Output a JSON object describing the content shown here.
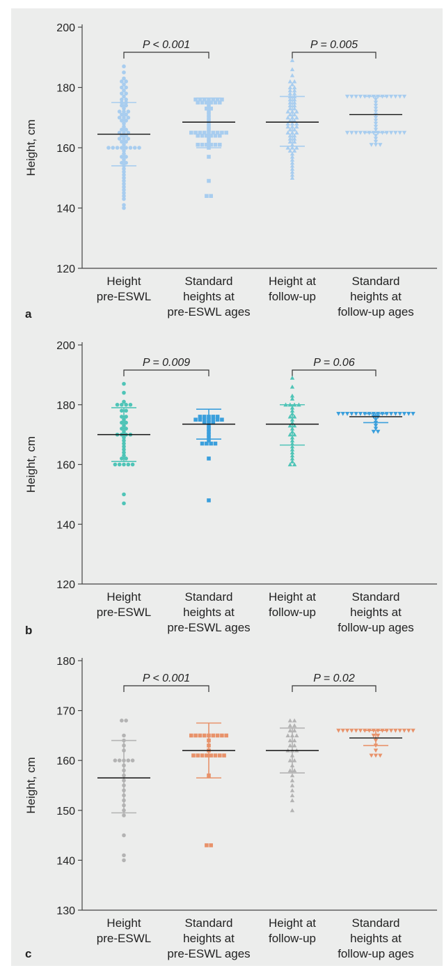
{
  "chart_data": [
    {
      "type": "scatter",
      "panel_label": "a",
      "ylabel": "Height, cm",
      "ylim": [
        120,
        200
      ],
      "yticks": [
        120,
        140,
        160,
        180,
        200
      ],
      "categories": [
        "Height\npre-ESWL",
        "Standard\nheights at\npre-ESWL ages",
        "Height at\nfollow-up",
        "Standard\nheights at\nfollow-up ages"
      ],
      "comparisons": [
        {
          "from": 0,
          "to": 1,
          "label": "P < 0.001"
        },
        {
          "from": 2,
          "to": 3,
          "label": "P = 0.005"
        }
      ],
      "series": [
        {
          "marker": "circle",
          "color": "#a8cdef",
          "mean": 164.5,
          "sd_low": 154,
          "sd_high": 175,
          "values": [
            187,
            185,
            183,
            182,
            182,
            181,
            180,
            180,
            179,
            178,
            178,
            177,
            176,
            176,
            175,
            175,
            174,
            174,
            173,
            172,
            172,
            172,
            171,
            171,
            170,
            170,
            170,
            169,
            169,
            168,
            167,
            166,
            166,
            165,
            165,
            165,
            164,
            164,
            163,
            163,
            163,
            162,
            162,
            161,
            160,
            160,
            160,
            160,
            160,
            160,
            160,
            160,
            159,
            158,
            157,
            157,
            156,
            155,
            155,
            154,
            153,
            152,
            151,
            150,
            149,
            148,
            147,
            146,
            145,
            144,
            143,
            141,
            140
          ]
        },
        {
          "marker": "square",
          "color": "#a8cdef",
          "mean": 168.5,
          "sd_low": 160,
          "sd_high": 176.5,
          "values": [
            176,
            176,
            176,
            176,
            176,
            176,
            176,
            175,
            175,
            175,
            175,
            175,
            175,
            174,
            173,
            173,
            172,
            171,
            170,
            169,
            168,
            167,
            166,
            165,
            165,
            165,
            165,
            165,
            165,
            165,
            165,
            165,
            164,
            164,
            164,
            164,
            164,
            164,
            163,
            162,
            161,
            161,
            161,
            161,
            161,
            161,
            160,
            157,
            149,
            144,
            144
          ]
        },
        {
          "marker": "triangle-up",
          "color": "#a8cdef",
          "mean": 168.5,
          "sd_low": 160.5,
          "sd_high": 177,
          "values": [
            189,
            186,
            184,
            182,
            182,
            181,
            180,
            180,
            179,
            179,
            178,
            178,
            177,
            177,
            176,
            176,
            175,
            175,
            174,
            174,
            173,
            173,
            172,
            172,
            172,
            171,
            171,
            170,
            170,
            170,
            169,
            169,
            168,
            168,
            168,
            167,
            167,
            167,
            166,
            166,
            165,
            165,
            165,
            164,
            164,
            163,
            163,
            162,
            162,
            161,
            160,
            160,
            160,
            159,
            159,
            158,
            157,
            156,
            155,
            154,
            153,
            152,
            151,
            150
          ]
        },
        {
          "marker": "triangle-down",
          "color": "#a8cdef",
          "mean": 171,
          "sd_low": 165,
          "sd_high": 177,
          "values": [
            177,
            177,
            177,
            177,
            177,
            177,
            177,
            177,
            177,
            177,
            177,
            177,
            177,
            177,
            176,
            175,
            174,
            173,
            172,
            171,
            170,
            169,
            168,
            167,
            166,
            165,
            165,
            165,
            165,
            165,
            165,
            165,
            165,
            165,
            165,
            165,
            165,
            165,
            165,
            164,
            163,
            162,
            161,
            161,
            161
          ]
        }
      ]
    },
    {
      "type": "scatter",
      "panel_label": "b",
      "ylabel": "Height, cm",
      "ylim": [
        120,
        200
      ],
      "yticks": [
        120,
        140,
        160,
        180,
        200
      ],
      "categories": [
        "Height\npre-ESWL",
        "Standard\nheights at\npre-ESWL ages",
        "Height at\nfollow-up",
        "Standard\nheights at\nfollow-up ages"
      ],
      "comparisons": [
        {
          "from": 0,
          "to": 1,
          "label": "P = 0.009"
        },
        {
          "from": 2,
          "to": 3,
          "label": "P = 0.06"
        }
      ],
      "series": [
        {
          "marker": "circle",
          "color": "#4fc4b7",
          "mean": 170,
          "sd_low": 161,
          "sd_high": 179,
          "values": [
            187,
            184,
            181,
            180,
            180,
            180,
            180,
            178,
            178,
            176,
            176,
            175,
            174,
            174,
            173,
            172,
            172,
            171,
            170,
            170,
            170,
            170,
            169,
            168,
            167,
            166,
            165,
            164,
            163,
            162,
            162,
            160,
            160,
            160,
            160,
            160,
            150,
            147
          ]
        },
        {
          "marker": "square",
          "color": "#3a9fdc",
          "mean": 173.5,
          "sd_low": 168.5,
          "sd_high": 178.5,
          "values": [
            176,
            176,
            176,
            176,
            176,
            175,
            175,
            175,
            175,
            175,
            175,
            175,
            174,
            174,
            174,
            173,
            172,
            171,
            170,
            169,
            168,
            167,
            167,
            167,
            167,
            162,
            148
          ]
        },
        {
          "marker": "triangle-up",
          "color": "#4fc4b7",
          "mean": 173.5,
          "sd_low": 166.5,
          "sd_high": 180,
          "values": [
            189,
            186,
            183,
            182,
            180,
            180,
            180,
            180,
            179,
            178,
            177,
            176,
            176,
            175,
            174,
            173,
            173,
            172,
            171,
            170,
            170,
            169,
            168,
            167,
            166,
            165,
            164,
            163,
            162,
            161,
            160,
            160
          ]
        },
        {
          "marker": "triangle-down",
          "color": "#3a9fdc",
          "mean": 176,
          "sd_low": 174,
          "sd_high": 177,
          "values": [
            177,
            177,
            177,
            177,
            177,
            177,
            177,
            177,
            177,
            177,
            177,
            177,
            177,
            177,
            177,
            177,
            177,
            177,
            176,
            176,
            175,
            174,
            173,
            172,
            171,
            171
          ]
        }
      ]
    },
    {
      "type": "scatter",
      "panel_label": "c",
      "ylabel": "Height, cm",
      "ylim": [
        130,
        180
      ],
      "yticks": [
        130,
        140,
        150,
        160,
        170,
        180
      ],
      "categories": [
        "Height\npre-ESWL",
        "Standard\nheights at\npre-ESWL ages",
        "Height at\nfollow-up",
        "Standard\nheights at\nfollow-up ages"
      ],
      "comparisons": [
        {
          "from": 0,
          "to": 1,
          "label": "P < 0.001"
        },
        {
          "from": 2,
          "to": 3,
          "label": "P = 0.02"
        }
      ],
      "series": [
        {
          "marker": "circle",
          "color": "#b3b3b3",
          "mean": 156.5,
          "sd_low": 149.5,
          "sd_high": 164,
          "values": [
            168,
            168,
            165,
            164,
            163,
            162,
            160,
            160,
            160,
            160,
            160,
            159,
            158,
            157,
            156,
            155,
            154,
            153,
            152,
            151,
            150,
            149,
            145,
            141,
            140
          ]
        },
        {
          "marker": "square",
          "color": "#e8926a",
          "mean": 162,
          "sd_low": 156.5,
          "sd_high": 167.5,
          "values": [
            165,
            165,
            165,
            165,
            165,
            165,
            165,
            165,
            165,
            164,
            163,
            162,
            161,
            161,
            161,
            161,
            161,
            161,
            161,
            161,
            157,
            143,
            143
          ]
        },
        {
          "marker": "triangle-up",
          "color": "#b3b3b3",
          "mean": 162,
          "sd_low": 157.5,
          "sd_high": 166.5,
          "values": [
            168,
            168,
            167,
            167,
            166,
            166,
            165,
            165,
            165,
            164,
            164,
            163,
            163,
            162,
            162,
            162,
            161,
            160,
            160,
            159,
            158,
            158,
            157,
            156,
            155,
            154,
            153,
            152,
            150
          ]
        },
        {
          "marker": "triangle-down",
          "color": "#e8926a",
          "mean": 164.5,
          "sd_low": 163,
          "sd_high": 166,
          "values": [
            166,
            166,
            166,
            166,
            166,
            166,
            166,
            166,
            166,
            166,
            166,
            166,
            166,
            166,
            166,
            166,
            166,
            166,
            165,
            165,
            164,
            163,
            162,
            161,
            161,
            161
          ]
        }
      ]
    }
  ]
}
